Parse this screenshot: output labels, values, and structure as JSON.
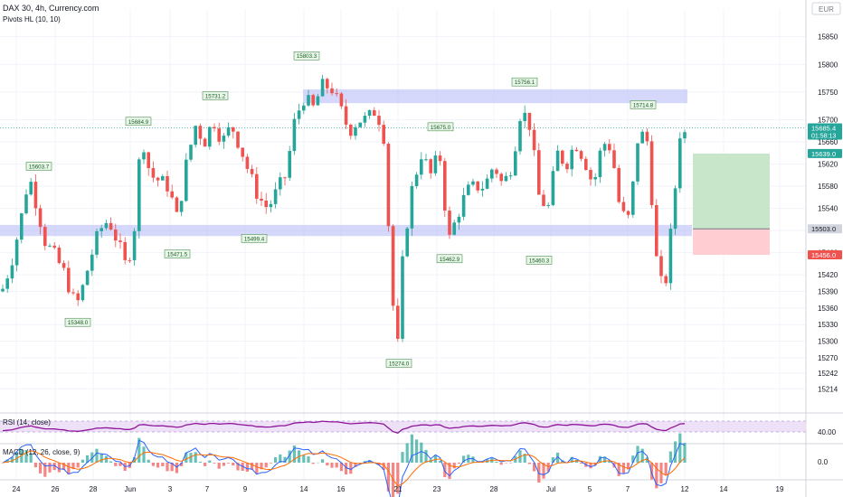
{
  "header": {
    "symbol_line": "DAX 30, 4h, Currency.com",
    "indicator": "Pivots HL (10, 10)",
    "currency": "EUR"
  },
  "colors": {
    "up": "#26a69a",
    "down": "#ef5350",
    "zone": "#b3b8f5",
    "price_line": "#26a69a",
    "rsi": "#8e1599",
    "macd": "#2962ff",
    "signal": "#ff6d00",
    "profit": "#c8e6c9",
    "loss": "#ffcdd2"
  },
  "chart_data": {
    "type": "candlestick",
    "ylim": [
      15190,
      15900
    ],
    "price_ticks": [
      15214,
      15242,
      15270,
      15300,
      15330,
      15360,
      15390,
      15420,
      15460,
      15500,
      15540,
      15580,
      15620,
      15660,
      15700,
      15750,
      15800,
      15850
    ],
    "date_ticks": [
      "24",
      "26",
      "28",
      "Jun",
      "3",
      "7",
      "9",
      "14",
      "16",
      "21",
      "23",
      "28",
      "Jul",
      "5",
      "7",
      "12",
      "14",
      "19"
    ],
    "current_price": "15685.4",
    "countdown": "01:58:13",
    "price_line_value": 15685.4,
    "resistance_zone": [
      15730,
      15755
    ],
    "support_zone": [
      15490,
      15510
    ],
    "position": {
      "target": "15639.0",
      "entry": "15503.0",
      "stop": "15456.0",
      "target_value": 15639,
      "entry_value": 15503,
      "stop_value": 15456
    },
    "pivot_labels": [
      {
        "text": "15603.7",
        "value": 15603.7,
        "kind": "high"
      },
      {
        "text": "15348.0",
        "value": 15348.0,
        "kind": "low"
      },
      {
        "text": "15684.9",
        "value": 15684.9,
        "kind": "high"
      },
      {
        "text": "15471.5",
        "value": 15471.5,
        "kind": "low"
      },
      {
        "text": "15731.2",
        "value": 15731.2,
        "kind": "high"
      },
      {
        "text": "15499.4",
        "value": 15499.4,
        "kind": "low"
      },
      {
        "text": "15803.3",
        "value": 15803.3,
        "kind": "high"
      },
      {
        "text": "15274.0",
        "value": 15274.0,
        "kind": "low"
      },
      {
        "text": "15675.0",
        "value": 15675.0,
        "kind": "high"
      },
      {
        "text": "15462.9",
        "value": 15462.9,
        "kind": "low"
      },
      {
        "text": "15756.1",
        "value": 15756.1,
        "kind": "high"
      },
      {
        "text": "15460.3",
        "value": 15460.3,
        "kind": "low"
      },
      {
        "text": "15714.8",
        "value": 15714.8,
        "kind": "high"
      }
    ],
    "rsi": {
      "label": "RSI (14, close)",
      "level": "40.00"
    },
    "macd": {
      "label": "MACD (12, 26, close, 9)",
      "level": "0.0"
    }
  }
}
